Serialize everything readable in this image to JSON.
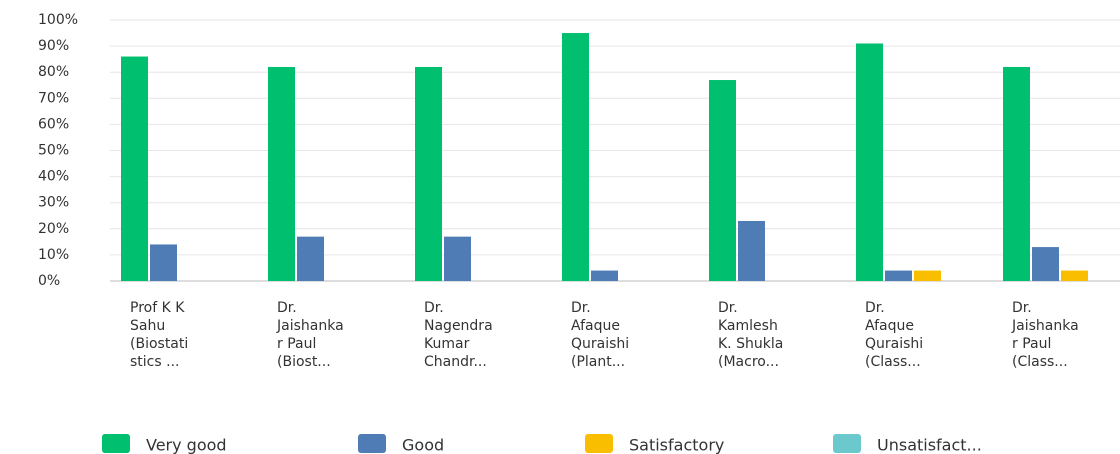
{
  "chart_data": {
    "type": "bar",
    "categories": [
      [
        "Prof K K",
        "Sahu",
        "(Biostati",
        "stics ..."
      ],
      [
        "Dr.",
        "Jaishanka",
        "r Paul",
        "(Biost..."
      ],
      [
        "Dr.",
        "Nagendra",
        "Kumar",
        "Chandr..."
      ],
      [
        "Dr.",
        "Afaque",
        "Quraishi",
        "(Plant..."
      ],
      [
        "Dr.",
        "Kamlesh",
        "K. Shukla",
        "(Macro..."
      ],
      [
        "Dr.",
        "Afaque",
        "Quraishi",
        "(Class..."
      ],
      [
        "Dr.",
        "Jaishanka",
        "r Paul",
        "(Class..."
      ]
    ],
    "series": [
      {
        "name": "Very good",
        "color": "#00bf6f",
        "values": [
          86,
          82,
          82,
          95,
          77,
          91,
          82
        ]
      },
      {
        "name": "Good",
        "color": "#507cb6",
        "values": [
          14,
          17,
          17,
          4,
          23,
          4,
          13
        ]
      },
      {
        "name": "Satisfactory",
        "color": "#f9be00",
        "values": [
          0,
          0,
          0,
          0,
          0,
          4,
          4
        ]
      },
      {
        "name": "Unsatisfact...",
        "color": "#6bc8cd",
        "values": [
          0,
          0,
          0,
          0,
          0,
          0,
          0
        ]
      }
    ],
    "ylim": [
      0,
      100
    ],
    "yticks": [
      {
        "value": 0,
        "label": "0%"
      },
      {
        "value": 10,
        "label": "10%"
      },
      {
        "value": 20,
        "label": "20%"
      },
      {
        "value": 30,
        "label": "30%"
      },
      {
        "value": 40,
        "label": "40%"
      },
      {
        "value": 50,
        "label": "50%"
      },
      {
        "value": 60,
        "label": "60%"
      },
      {
        "value": 70,
        "label": "70%"
      },
      {
        "value": 80,
        "label": "80%"
      },
      {
        "value": 90,
        "label": "90%"
      },
      {
        "value": 100,
        "label": "100%"
      }
    ],
    "grid": true,
    "legend": "bottom"
  }
}
